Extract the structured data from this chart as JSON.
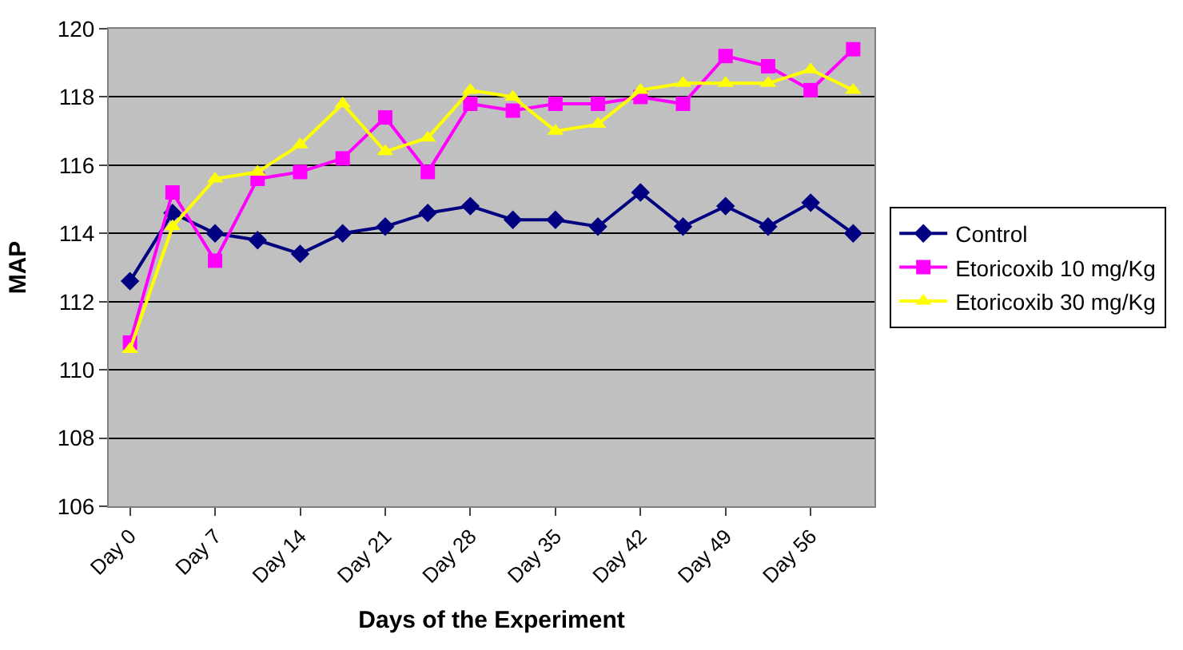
{
  "chart_data": {
    "type": "line",
    "xlabel": "Days of the Experiment",
    "ylabel": "MAP",
    "categories": [
      "Day 0",
      null,
      "Day 7",
      null,
      "Day 14",
      null,
      "Day 21",
      null,
      "Day 28",
      null,
      "Day 35",
      null,
      "Day 42",
      null,
      "Day 49",
      null,
      "Day 56",
      null
    ],
    "series": [
      {
        "name": "Control",
        "color": "#000080",
        "marker": "diamond",
        "values": [
          112.6,
          114.6,
          114.0,
          113.8,
          113.4,
          114.0,
          114.2,
          114.6,
          114.8,
          114.4,
          114.4,
          114.2,
          115.2,
          114.2,
          114.8,
          114.2,
          114.9,
          114.0
        ]
      },
      {
        "name": "Etoricoxib 10 mg/Kg",
        "color": "#ff00ff",
        "marker": "square",
        "values": [
          110.8,
          115.2,
          113.2,
          115.6,
          115.8,
          116.2,
          117.4,
          115.8,
          117.8,
          117.6,
          117.8,
          117.8,
          118.0,
          117.8,
          119.2,
          118.9,
          118.2,
          119.4
        ]
      },
      {
        "name": "Etoricoxib 30 mg/Kg",
        "color": "#ffff00",
        "marker": "triangle",
        "values": [
          110.6,
          114.2,
          115.6,
          115.8,
          116.6,
          117.8,
          116.4,
          116.8,
          118.2,
          118.0,
          117.0,
          117.2,
          118.2,
          118.4,
          118.4,
          118.4,
          118.8,
          118.2
        ]
      }
    ],
    "ylim": [
      106,
      120
    ],
    "yticks": [
      106,
      108,
      110,
      112,
      114,
      116,
      118,
      120
    ],
    "grid": "y",
    "legend": "right",
    "line_style": "solid"
  }
}
